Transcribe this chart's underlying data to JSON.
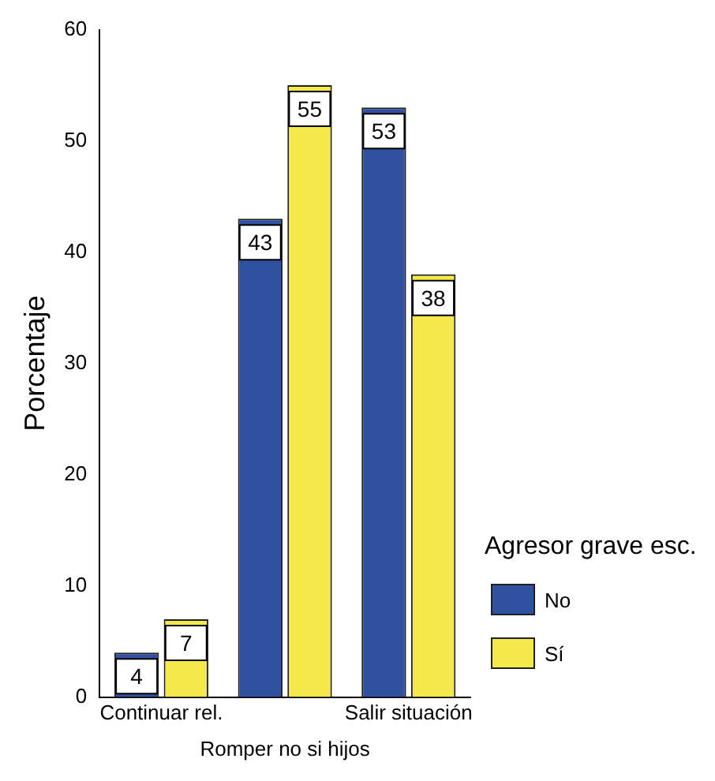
{
  "chart_data": {
    "type": "bar",
    "categories": [
      "Continuar rel.",
      null,
      "Salir situación"
    ],
    "xlabel": "Romper no si hijos",
    "ylabel": "Porcentaje",
    "legend_title": "Agresor grave esc.",
    "series": [
      {
        "name": "No",
        "color": "#3050a0",
        "values": [
          4,
          43,
          53
        ]
      },
      {
        "name": "Sí",
        "color": "#f5e84a",
        "values": [
          7,
          55,
          38
        ]
      }
    ],
    "ylim": [
      0,
      60
    ],
    "yticks": [
      0,
      10,
      20,
      30,
      40,
      50,
      60
    ],
    "grid": false,
    "legend": "right",
    "data_labels": true
  }
}
